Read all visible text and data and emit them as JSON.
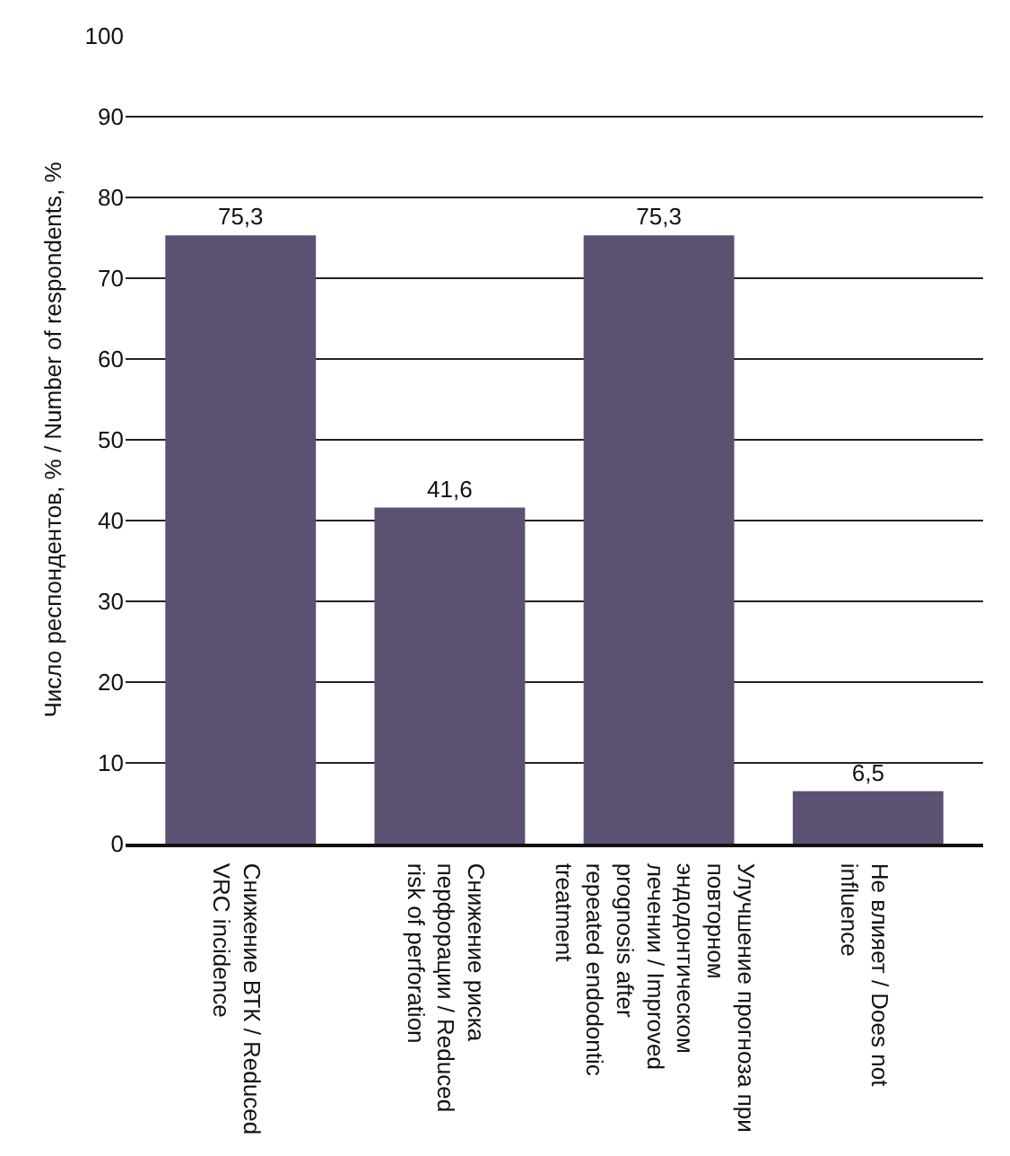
{
  "chart_data": {
    "type": "bar",
    "ylabel": "Число респондентов, % / Number of respondents, %",
    "categories": [
      "Снижение ВТК / Reduced VRC incidence",
      "Снижение риска перфорации / Reduced risk of perforation",
      "Улучшение прогноза при повторном эндодонтическом лечении / Improved prognosis after repeated endodontic treatment",
      "Не влияет / Does not influence"
    ],
    "values": [
      75.3,
      41.6,
      75.3,
      6.5
    ],
    "value_labels": [
      "75,3",
      "41,6",
      "75,3",
      "6,5"
    ],
    "color": "#5c5073",
    "ylim": [
      0,
      100
    ],
    "yticks": [
      0,
      10,
      20,
      30,
      40,
      50,
      60,
      70,
      80,
      90,
      100
    ],
    "grid": "y"
  }
}
